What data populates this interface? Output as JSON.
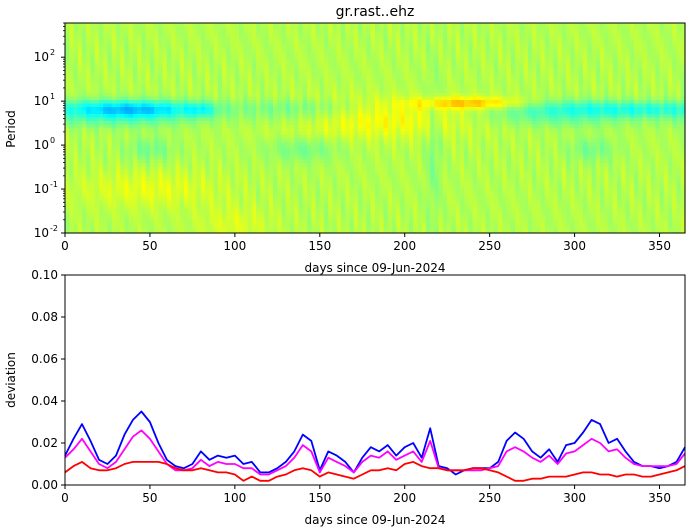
{
  "chart_data": [
    {
      "type": "heatmap",
      "title": "gr.rast..ehz",
      "xlabel": "days since 09-Jun-2024",
      "ylabel": "Period",
      "xlim": [
        0,
        365
      ],
      "ylim": [
        0.01,
        600
      ],
      "yscale": "log",
      "xticks": [
        0,
        50,
        100,
        150,
        200,
        250,
        300,
        350
      ],
      "yticks": [
        {
          "value": 0.01,
          "label": "10",
          "exp": "-2"
        },
        {
          "value": 0.1,
          "label": "10",
          "exp": "-1"
        },
        {
          "value": 1,
          "label": "10",
          "exp": "0"
        },
        {
          "value": 10,
          "label": "10",
          "exp": "1"
        },
        {
          "value": 100,
          "label": "10",
          "exp": "2"
        }
      ],
      "colormap": "jet",
      "notes_visible": "blue band near period 5-10 through most of the year, yellow/orange patches near period 5-10 around days 150-270, green background elsewhere"
    },
    {
      "type": "line",
      "xlabel": "days since 09-Jun-2024",
      "ylabel": "deviation",
      "xlim": [
        0,
        365
      ],
      "ylim": [
        0,
        0.1
      ],
      "xticks": [
        0,
        50,
        100,
        150,
        200,
        250,
        300,
        350
      ],
      "yticks": [
        "0.00",
        "0.02",
        "0.04",
        "0.06",
        "0.08",
        "0.10"
      ],
      "x": [
        0,
        5,
        10,
        15,
        20,
        25,
        30,
        35,
        40,
        45,
        50,
        55,
        60,
        65,
        70,
        75,
        80,
        85,
        90,
        95,
        100,
        105,
        110,
        115,
        120,
        125,
        130,
        135,
        140,
        145,
        150,
        155,
        160,
        165,
        170,
        175,
        180,
        185,
        190,
        195,
        200,
        205,
        210,
        215,
        220,
        225,
        230,
        235,
        240,
        245,
        250,
        255,
        260,
        265,
        270,
        275,
        280,
        285,
        290,
        295,
        300,
        305,
        310,
        315,
        320,
        325,
        330,
        335,
        340,
        345,
        350,
        355,
        360,
        365
      ],
      "series": [
        {
          "color": "#0000ff",
          "values": [
            0.014,
            0.022,
            0.029,
            0.021,
            0.012,
            0.01,
            0.014,
            0.024,
            0.031,
            0.035,
            0.03,
            0.02,
            0.012,
            0.009,
            0.008,
            0.01,
            0.016,
            0.012,
            0.014,
            0.013,
            0.014,
            0.01,
            0.011,
            0.006,
            0.006,
            0.008,
            0.011,
            0.016,
            0.024,
            0.021,
            0.007,
            0.016,
            0.014,
            0.011,
            0.006,
            0.013,
            0.018,
            0.016,
            0.019,
            0.014,
            0.018,
            0.02,
            0.013,
            0.027,
            0.009,
            0.008,
            0.005,
            0.007,
            0.008,
            0.008,
            0.008,
            0.011,
            0.021,
            0.025,
            0.022,
            0.016,
            0.013,
            0.017,
            0.011,
            0.019,
            0.02,
            0.025,
            0.031,
            0.029,
            0.02,
            0.022,
            0.016,
            0.011,
            0.009,
            0.009,
            0.008,
            0.009,
            0.011,
            0.018
          ]
        },
        {
          "color": "#ff00ff",
          "values": [
            0.013,
            0.017,
            0.022,
            0.016,
            0.01,
            0.008,
            0.011,
            0.017,
            0.023,
            0.026,
            0.022,
            0.016,
            0.01,
            0.007,
            0.007,
            0.008,
            0.012,
            0.009,
            0.011,
            0.01,
            0.01,
            0.008,
            0.008,
            0.005,
            0.005,
            0.007,
            0.009,
            0.013,
            0.019,
            0.016,
            0.006,
            0.013,
            0.011,
            0.009,
            0.006,
            0.011,
            0.014,
            0.013,
            0.016,
            0.012,
            0.014,
            0.016,
            0.011,
            0.021,
            0.008,
            0.007,
            0.007,
            0.007,
            0.007,
            0.007,
            0.008,
            0.009,
            0.016,
            0.018,
            0.016,
            0.013,
            0.011,
            0.014,
            0.01,
            0.015,
            0.016,
            0.019,
            0.022,
            0.02,
            0.016,
            0.017,
            0.013,
            0.01,
            0.009,
            0.009,
            0.009,
            0.009,
            0.01,
            0.015
          ]
        },
        {
          "color": "#ff0000",
          "values": [
            0.006,
            0.009,
            0.011,
            0.008,
            0.007,
            0.007,
            0.008,
            0.01,
            0.011,
            0.011,
            0.011,
            0.011,
            0.01,
            0.008,
            0.007,
            0.007,
            0.008,
            0.007,
            0.006,
            0.006,
            0.005,
            0.002,
            0.004,
            0.002,
            0.002,
            0.004,
            0.005,
            0.007,
            0.008,
            0.007,
            0.004,
            0.006,
            0.005,
            0.004,
            0.003,
            0.005,
            0.007,
            0.007,
            0.008,
            0.007,
            0.01,
            0.011,
            0.009,
            0.008,
            0.008,
            0.007,
            0.007,
            0.007,
            0.008,
            0.008,
            0.007,
            0.006,
            0.004,
            0.002,
            0.002,
            0.003,
            0.003,
            0.004,
            0.004,
            0.004,
            0.005,
            0.006,
            0.006,
            0.005,
            0.005,
            0.004,
            0.005,
            0.005,
            0.004,
            0.004,
            0.005,
            0.006,
            0.007,
            0.009
          ]
        }
      ]
    }
  ]
}
